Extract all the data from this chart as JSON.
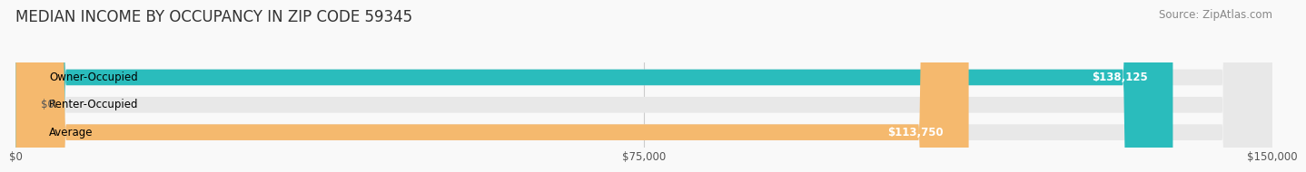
{
  "title": "MEDIAN INCOME BY OCCUPANCY IN ZIP CODE 59345",
  "source": "Source: ZipAtlas.com",
  "categories": [
    "Owner-Occupied",
    "Renter-Occupied",
    "Average"
  ],
  "values": [
    138125,
    0,
    113750
  ],
  "labels": [
    "$138,125",
    "$0",
    "$113,750"
  ],
  "bar_colors": [
    "#2abcbc",
    "#c9a8d4",
    "#f5b96e"
  ],
  "bar_bg_color": "#e8e8e8",
  "max_value": 150000,
  "xticks": [
    0,
    75000,
    150000
  ],
  "xtick_labels": [
    "$0",
    "$75,000",
    "$150,000"
  ],
  "title_fontsize": 12,
  "source_fontsize": 8.5,
  "label_fontsize": 8.5,
  "bar_label_fontsize": 8.5,
  "bar_height": 0.58,
  "background_color": "#f9f9f9"
}
